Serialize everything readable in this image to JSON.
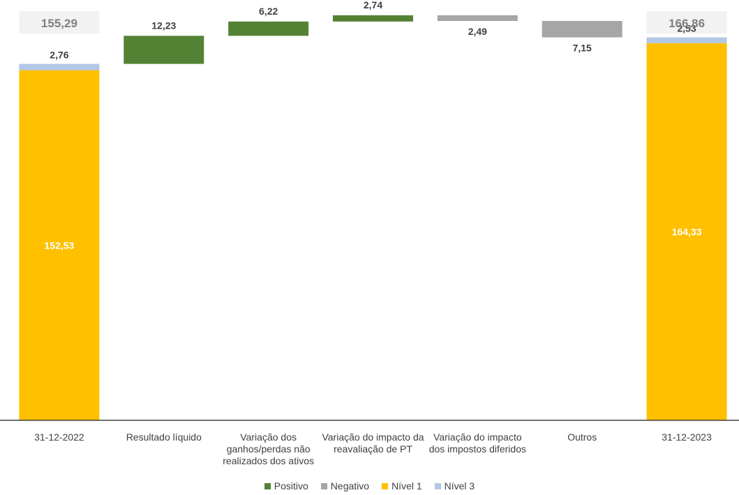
{
  "chart_data": {
    "type": "bar",
    "subtype": "waterfall",
    "categories": [
      [
        "31-12-2022"
      ],
      [
        "Resultado líquido"
      ],
      [
        "Variação dos",
        "ganhos/perdas não",
        "realizados dos ativos"
      ],
      [
        "Variação do impacto da",
        "reavaliação de PT"
      ],
      [
        "Variação do impacto",
        "dos impostos diferidos"
      ],
      [
        "Outros"
      ],
      [
        "31-12-2023"
      ]
    ],
    "totals": [
      {
        "category_index": 0,
        "nivel1": 152.53,
        "nivel3": 2.76,
        "total": 155.29,
        "nivel1_label": "152,53",
        "nivel3_label": "2,76",
        "total_label": "155,29"
      },
      {
        "category_index": 6,
        "nivel1": 164.33,
        "nivel3": 2.53,
        "total": 166.86,
        "nivel1_label": "164,33",
        "nivel3_label": "2,53",
        "total_label": "166,86"
      }
    ],
    "steps": [
      {
        "category_index": 1,
        "value": 12.23,
        "label": "12,23",
        "series": "Positivo"
      },
      {
        "category_index": 2,
        "value": 6.22,
        "label": "6,22",
        "series": "Positivo"
      },
      {
        "category_index": 3,
        "value": 2.74,
        "label": "2,74",
        "series": "Positivo"
      },
      {
        "category_index": 4,
        "value": -2.49,
        "label": "2,49",
        "series": "Negativo"
      },
      {
        "category_index": 5,
        "value": -7.15,
        "label": "7,15",
        "series": "Negativo"
      }
    ],
    "ylim": [
      0,
      174
    ],
    "grid": false,
    "legend_position": "bottom",
    "legend": [
      {
        "name": "Positivo",
        "color": "#548235"
      },
      {
        "name": "Negativo",
        "color": "#a6a6a6"
      },
      {
        "name": "Nível 1",
        "color": "#ffc000"
      },
      {
        "name": "Nível 3",
        "color": "#b4c7e7"
      }
    ],
    "colors": {
      "positivo": "#548235",
      "negativo": "#a6a6a6",
      "nivel1": "#ffc000",
      "nivel3": "#b4c7e7",
      "total_box": "#f2f2f2",
      "total_text": "#7f7f7f",
      "label_text": "#404040",
      "inner_label_text": "#ffffff",
      "axis": "#404040"
    }
  }
}
